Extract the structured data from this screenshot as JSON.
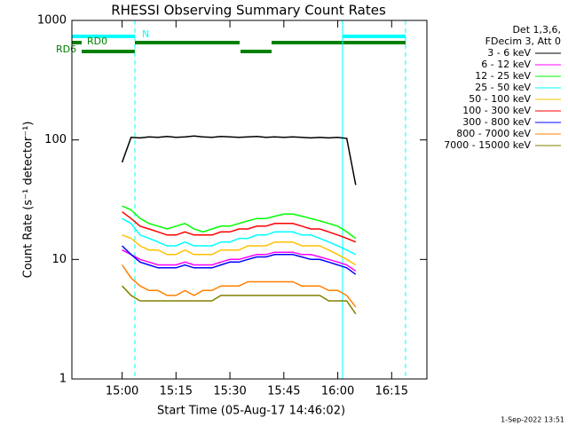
{
  "chart_data": {
    "type": "line",
    "title": "RHESSI Observing Summary Count Rates",
    "x_label": "Start Time (05-Aug-17 14:46:02)",
    "y_label": "Count Rate (s⁻¹ detector⁻¹)",
    "legend_header": [
      "Det 1,3,6,",
      "FDecim 3, Att 0"
    ],
    "annotations": [
      "N",
      "RD0",
      "RD6"
    ],
    "footer": "1-Sep-2022 13:51",
    "log_y": true,
    "ylim": [
      1,
      1000
    ],
    "yticks": [
      1,
      10,
      100,
      1000
    ],
    "xlim": [
      886.03,
      984.8
    ],
    "xticks": [
      {
        "value": 900,
        "label": "15:00"
      },
      {
        "value": 915,
        "label": "15:15"
      },
      {
        "value": 930,
        "label": "15:30"
      },
      {
        "value": 945,
        "label": "15:45"
      },
      {
        "value": 960,
        "label": "16:00"
      },
      {
        "value": 975,
        "label": "16:15"
      }
    ],
    "x": [
      900,
      902.5,
      905,
      907.5,
      910,
      912.5,
      915,
      917.5,
      920,
      922.5,
      925,
      927.5,
      930,
      932.5,
      935,
      937.5,
      940,
      942.5,
      945,
      947.5,
      950,
      952.5,
      955,
      957.5,
      960,
      962.5,
      965
    ],
    "series": [
      {
        "name": "3 - 6 keV",
        "color": "#000000",
        "values": [
          65,
          105,
          104,
          106,
          105,
          107,
          105,
          106,
          108,
          106,
          105,
          107,
          106,
          105,
          106,
          107,
          105,
          106,
          105,
          106,
          105,
          104,
          105,
          104,
          105,
          103,
          42
        ]
      },
      {
        "name": "6 - 12 keV",
        "color": "#ff00ff",
        "values": [
          12,
          11,
          10,
          9.5,
          9,
          9,
          9,
          9.5,
          9,
          9,
          9,
          9.5,
          10,
          10,
          10.5,
          11,
          11,
          11.5,
          11.5,
          11.5,
          11,
          11,
          10.5,
          10,
          9.5,
          9,
          8
        ]
      },
      {
        "name": "12 - 25 keV",
        "color": "#00ff00",
        "values": [
          28,
          26,
          22,
          20,
          19,
          18,
          19,
          20,
          18,
          17,
          18,
          19,
          19,
          20,
          21,
          22,
          22,
          23,
          24,
          24,
          23,
          22,
          21,
          20,
          19,
          17,
          15
        ]
      },
      {
        "name": "25 - 50 keV",
        "color": "#00ffff",
        "values": [
          22,
          20,
          16,
          15,
          14,
          13,
          13,
          14,
          13,
          13,
          13,
          14,
          14,
          15,
          15,
          16,
          16,
          17,
          17,
          17,
          16,
          16,
          15,
          14,
          13,
          12,
          11
        ]
      },
      {
        "name": "50 - 100 keV",
        "color": "#ffc000",
        "values": [
          16,
          15,
          13,
          12,
          12,
          11,
          11,
          12,
          11,
          11,
          11,
          12,
          12,
          12,
          13,
          13,
          13,
          14,
          14,
          14,
          13,
          13,
          13,
          12,
          11,
          10,
          9
        ]
      },
      {
        "name": "100 - 300 keV",
        "color": "#ff0000",
        "values": [
          25,
          22,
          19,
          18,
          17,
          16,
          16,
          17,
          16,
          16,
          16,
          17,
          17,
          18,
          18,
          19,
          19,
          20,
          20,
          20,
          19,
          18,
          18,
          17,
          16,
          15,
          14
        ]
      },
      {
        "name": "300 - 800 keV",
        "color": "#0000ff",
        "values": [
          13,
          11,
          9.5,
          9,
          8.5,
          8.5,
          8.5,
          9,
          8.5,
          8.5,
          8.5,
          9,
          9.5,
          9.5,
          10,
          10.5,
          10.5,
          11,
          11,
          11,
          10.5,
          10,
          10,
          9.5,
          9,
          8.5,
          7.5
        ]
      },
      {
        "name": "800 - 7000 keV",
        "color": "#ff8000",
        "values": [
          9,
          7,
          6,
          5.5,
          5.5,
          5,
          5,
          5.5,
          5,
          5.5,
          5.5,
          6,
          6,
          6,
          6.5,
          6.5,
          6.5,
          6.5,
          6.5,
          6.5,
          6,
          6,
          6,
          5.5,
          5.5,
          5,
          4
        ]
      },
      {
        "name": "7000 - 15000 keV",
        "color": "#808000",
        "values": [
          6,
          5,
          4.5,
          4.5,
          4.5,
          4.5,
          4.5,
          4.5,
          4.5,
          4.5,
          4.5,
          5,
          5,
          5,
          5,
          5,
          5,
          5,
          5,
          5,
          5,
          5,
          5,
          4.5,
          4.5,
          4.5,
          3.5
        ]
      }
    ]
  }
}
